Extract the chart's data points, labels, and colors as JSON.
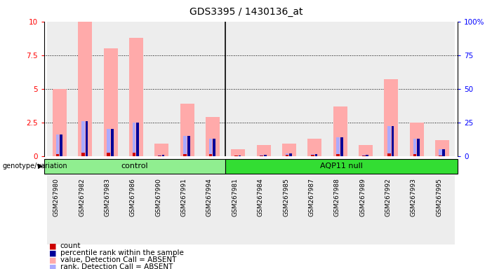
{
  "title": "GDS3395 / 1430136_at",
  "samples": [
    "GSM267980",
    "GSM267982",
    "GSM267983",
    "GSM267986",
    "GSM267990",
    "GSM267991",
    "GSM267994",
    "GSM267981",
    "GSM267984",
    "GSM267985",
    "GSM267987",
    "GSM267988",
    "GSM267989",
    "GSM267992",
    "GSM267993",
    "GSM267995"
  ],
  "groups": [
    "control",
    "control",
    "control",
    "control",
    "control",
    "control",
    "control",
    "AQP11 null",
    "AQP11 null",
    "AQP11 null",
    "AQP11 null",
    "AQP11 null",
    "AQP11 null",
    "AQP11 null",
    "AQP11 null",
    "AQP11 null"
  ],
  "count_values": [
    0.15,
    0.27,
    0.22,
    0.25,
    0.05,
    0.13,
    0.13,
    0.04,
    0.06,
    0.08,
    0.1,
    0.12,
    0.06,
    0.2,
    0.12,
    0.06
  ],
  "rank_values": [
    1.6,
    2.6,
    2.0,
    2.5,
    0.1,
    1.5,
    1.3,
    0.05,
    0.1,
    0.2,
    0.15,
    1.4,
    0.08,
    2.2,
    1.3,
    0.5
  ],
  "absent_value_bars": [
    5.0,
    10.0,
    8.0,
    8.8,
    0.9,
    3.9,
    2.9,
    0.5,
    0.8,
    0.9,
    1.3,
    3.7,
    0.8,
    5.7,
    2.5,
    1.2
  ],
  "absent_rank_bars": [
    1.6,
    2.6,
    2.0,
    2.5,
    0.1,
    1.5,
    1.3,
    0.05,
    0.1,
    0.2,
    0.15,
    1.4,
    0.08,
    2.2,
    1.3,
    0.5
  ],
  "ylim": [
    0,
    10
  ],
  "yticks": [
    0,
    2.5,
    5,
    7.5,
    10
  ],
  "ytick_labels": [
    "0",
    "2.5",
    "5",
    "7.5",
    "10"
  ],
  "right_ytick_labels": [
    "0",
    "25",
    "50",
    "75",
    "100%"
  ],
  "ctrl_color": "#90EE90",
  "aqp_color": "#33DD33",
  "absent_val_color": "#ffaaaa",
  "absent_rank_color": "#aaaaff",
  "count_color": "#cc0000",
  "rank_color": "#000099",
  "legend_items": [
    {
      "label": "count",
      "color": "#cc0000"
    },
    {
      "label": "percentile rank within the sample",
      "color": "#000099"
    },
    {
      "label": "value, Detection Call = ABSENT",
      "color": "#ffaaaa"
    },
    {
      "label": "rank, Detection Call = ABSENT",
      "color": "#aaaaff"
    }
  ]
}
